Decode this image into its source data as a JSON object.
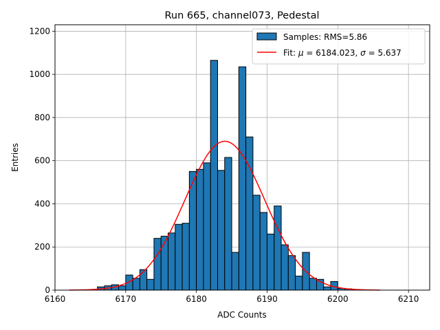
{
  "chart_data": {
    "type": "bar",
    "title": "Run 665, channel073, Pedestal",
    "xlabel": "ADC Counts",
    "ylabel": "Entries",
    "xlim": [
      6160,
      6213
    ],
    "ylim": [
      0,
      1230
    ],
    "xticks": [
      6160,
      6170,
      6180,
      6190,
      6200,
      6210
    ],
    "yticks": [
      0,
      200,
      400,
      600,
      800,
      1000,
      1200
    ],
    "grid": true,
    "legend_position": "top-right",
    "histogram": {
      "name": "Samples: RMS=5.86",
      "color": "#1f77b4",
      "edges_start": 6166,
      "bin_width": 1,
      "values": [
        15,
        20,
        25,
        20,
        70,
        55,
        95,
        50,
        240,
        250,
        265,
        305,
        310,
        550,
        560,
        590,
        1065,
        555,
        615,
        175,
        1035,
        710,
        440,
        360,
        260,
        390,
        210,
        160,
        65,
        175,
        55,
        50,
        15,
        40,
        8,
        6,
        3
      ]
    },
    "fit": {
      "name": "Fit: μ = 6184.023, σ = 5.637",
      "legend_prefix": "Fit: ",
      "mu_symbol": "μ",
      "mu_value": " = 6184.023, ",
      "sigma_symbol": "σ",
      "sigma_value": " = 5.637",
      "color": "#ff0000",
      "mu": 6184.023,
      "sigma": 5.637,
      "amplitude": 690,
      "x_range": [
        6162,
        6206
      ]
    }
  }
}
